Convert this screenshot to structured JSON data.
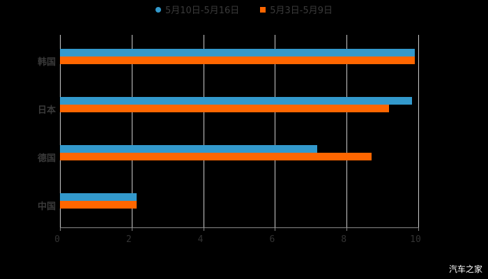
{
  "chart_data": {
    "type": "bar",
    "orientation": "horizontal",
    "categories": [
      "韩国",
      "日本",
      "德国",
      "中国"
    ],
    "series": [
      {
        "name": "5月10日-5月16日",
        "color": "#3399cc",
        "values": [
          9.9,
          9.83,
          7.18,
          2.14
        ]
      },
      {
        "name": "5月3日-5月9日",
        "color": "#ff6600",
        "values": [
          9.9,
          9.18,
          8.7,
          2.14
        ]
      }
    ],
    "xlim": [
      0,
      10
    ],
    "xticks": [
      "0",
      "2",
      "4",
      "6",
      "8",
      "10"
    ],
    "title": "",
    "xlabel": "",
    "ylabel": "",
    "grid": true,
    "legend_position": "top"
  },
  "legend": {
    "items": [
      {
        "label": "5月10日-5月16日",
        "color": "#3399cc"
      },
      {
        "label": "5月3日-5月9日",
        "color": "#ff6600"
      }
    ]
  },
  "watermark": "汽车之家"
}
